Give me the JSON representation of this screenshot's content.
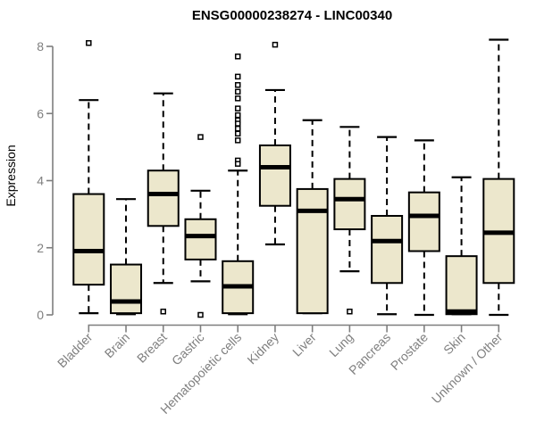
{
  "chart_data": {
    "type": "box",
    "title": "ENSG00000238274 - LINC00340",
    "xlabel": "",
    "ylabel": "Expression",
    "ylim": [
      0,
      8
    ],
    "yticks": [
      0,
      2,
      4,
      6,
      8
    ],
    "grid": "off",
    "legend": "none",
    "categories": [
      "Bladder",
      "Brain",
      "Breast",
      "Gastric",
      "Hematopoietic cells",
      "Kidney",
      "Liver",
      "Lung",
      "Pancreas",
      "Prostate",
      "Skin",
      "Unknown / Other"
    ],
    "boxes": [
      {
        "category": "Bladder",
        "min": 0.05,
        "q1": 0.9,
        "median": 1.9,
        "q3": 3.6,
        "max": 6.4,
        "outliers": [
          8.1
        ]
      },
      {
        "category": "Brain",
        "min": 0.02,
        "q1": 0.05,
        "median": 0.4,
        "q3": 1.5,
        "max": 3.45,
        "outliers": []
      },
      {
        "category": "Breast",
        "min": 0.95,
        "q1": 2.65,
        "median": 3.6,
        "q3": 4.3,
        "max": 6.6,
        "outliers": [
          0.1
        ]
      },
      {
        "category": "Gastric",
        "min": 1.0,
        "q1": 1.65,
        "median": 2.35,
        "q3": 2.85,
        "max": 3.7,
        "outliers": [
          5.3,
          0.0
        ]
      },
      {
        "category": "Hematopoietic cells",
        "min": 0.02,
        "q1": 0.05,
        "median": 0.85,
        "q3": 1.6,
        "max": 4.3,
        "outliers": [
          7.7,
          7.1,
          6.85,
          6.65,
          6.45,
          6.15,
          5.95,
          5.8,
          5.7,
          5.55,
          5.4,
          5.2,
          4.6,
          4.5
        ]
      },
      {
        "category": "Kidney",
        "min": 2.1,
        "q1": 3.25,
        "median": 4.4,
        "q3": 5.05,
        "max": 6.7,
        "outliers": [
          8.05
        ]
      },
      {
        "category": "Liver",
        "min": 0.05,
        "q1": 0.05,
        "median": 3.1,
        "q3": 3.75,
        "max": 5.8,
        "outliers": []
      },
      {
        "category": "Lung",
        "min": 1.3,
        "q1": 2.55,
        "median": 3.45,
        "q3": 4.05,
        "max": 5.6,
        "outliers": [
          0.1
        ]
      },
      {
        "category": "Pancreas",
        "min": 0.02,
        "q1": 0.95,
        "median": 2.2,
        "q3": 2.95,
        "max": 5.3,
        "outliers": []
      },
      {
        "category": "Prostate",
        "min": 0.0,
        "q1": 1.9,
        "median": 2.95,
        "q3": 3.65,
        "max": 5.2,
        "outliers": []
      },
      {
        "category": "Skin",
        "min": 0.02,
        "q1": 0.02,
        "median": 0.1,
        "q3": 1.75,
        "max": 4.1,
        "outliers": []
      },
      {
        "category": "Unknown / Other",
        "min": 0.0,
        "q1": 0.95,
        "median": 2.45,
        "q3": 4.05,
        "max": 8.2,
        "outliers": []
      }
    ],
    "style": {
      "box_fill": "#ECE7CC",
      "box_border": "#000000",
      "median_color": "#000000",
      "whisker_color": "#000000",
      "whisker_style": "dashed",
      "outlier_marker": "open-square",
      "axis_color": "#7F7F7F",
      "tick_label_color": "#7F7F7F",
      "title_color": "#000000",
      "background": "#FFFFFF"
    }
  }
}
